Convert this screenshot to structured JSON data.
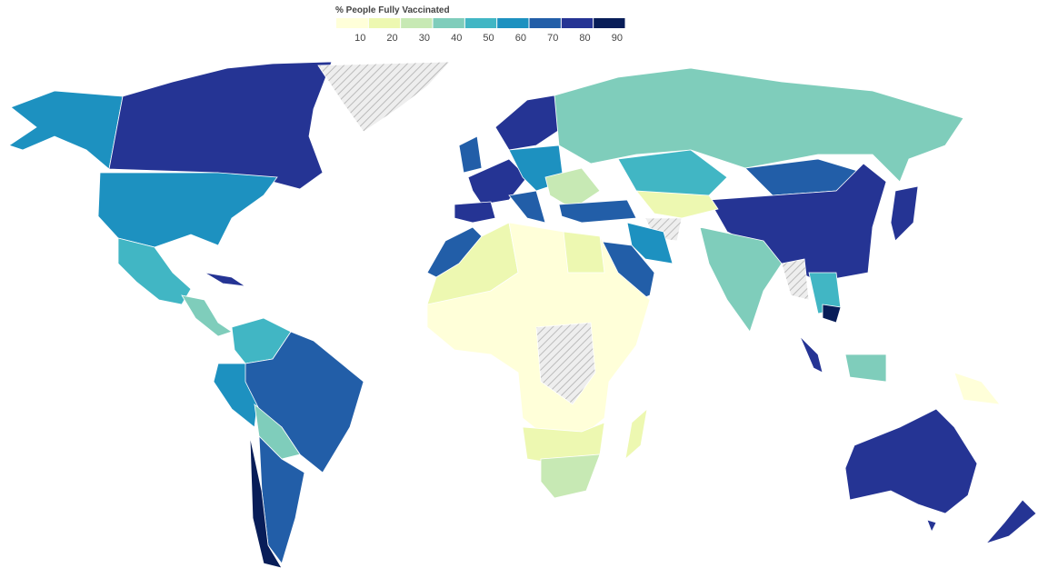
{
  "legend": {
    "title": "% People Fully Vaccinated",
    "range": [
      0,
      90
    ],
    "ticks": [
      10,
      20,
      30,
      40,
      50,
      60,
      70,
      80,
      90
    ],
    "colors": [
      "#ffffd9",
      "#edf8b1",
      "#c7e9b4",
      "#7fcdbb",
      "#41b6c4",
      "#1d91c0",
      "#225ea8",
      "#253494",
      "#081d58"
    ]
  }
}
